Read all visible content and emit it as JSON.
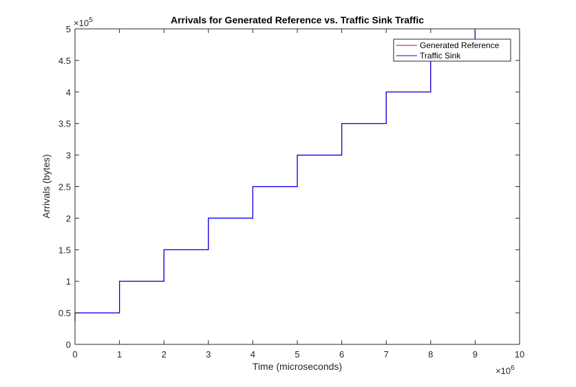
{
  "chart_data": {
    "type": "line",
    "title": "Arrivals for Generated Reference vs. Traffic Sink Traffic",
    "xlabel": "Time (microseconds)",
    "ylabel": "Arrivals (bytes)",
    "xlim": [
      0,
      10
    ],
    "ylim": [
      0,
      5
    ],
    "x_exponent": "×10",
    "x_exponent_power": "6",
    "y_exponent": "×10",
    "y_exponent_power": "5",
    "x_ticks": [
      "0",
      "1",
      "2",
      "3",
      "4",
      "5",
      "6",
      "7",
      "8",
      "9",
      "10"
    ],
    "y_ticks": [
      "0",
      "0.5",
      "1",
      "1.5",
      "2",
      "2.5",
      "3",
      "3.5",
      "4",
      "4.5",
      "5"
    ],
    "grid": false,
    "legend_position": "top-right",
    "series": [
      {
        "name": "Generated Reference",
        "color": "#cc0000",
        "points": [
          [
            0,
            0.37
          ],
          [
            0,
            0.5
          ],
          [
            1,
            0.5
          ],
          [
            1,
            0.6
          ],
          [
            1,
            1.0
          ],
          [
            2,
            1.0
          ],
          [
            2,
            1.23
          ],
          [
            2,
            1.5
          ],
          [
            3,
            1.5
          ],
          [
            3,
            2.0
          ],
          [
            4,
            2.0
          ],
          [
            4,
            2.5
          ],
          [
            5,
            2.5
          ],
          [
            5,
            3.0
          ],
          [
            6,
            3.0
          ],
          [
            6,
            3.33
          ],
          [
            6,
            3.5
          ],
          [
            7,
            3.5
          ],
          [
            7,
            4.0
          ],
          [
            8,
            4.0
          ],
          [
            8,
            4.5
          ],
          [
            9,
            4.5
          ],
          [
            9,
            5.0
          ]
        ]
      },
      {
        "name": "Traffic Sink",
        "color": "#0000ff",
        "points": [
          [
            0,
            0.37
          ],
          [
            0,
            0.5
          ],
          [
            1,
            0.5
          ],
          [
            1,
            1.0
          ],
          [
            2,
            1.0
          ],
          [
            2,
            1.5
          ],
          [
            3,
            1.5
          ],
          [
            3,
            2.0
          ],
          [
            4,
            2.0
          ],
          [
            4,
            2.5
          ],
          [
            5,
            2.5
          ],
          [
            5,
            3.0
          ],
          [
            6,
            3.0
          ],
          [
            6,
            3.5
          ],
          [
            7,
            3.5
          ],
          [
            7,
            4.0
          ],
          [
            8,
            4.0
          ],
          [
            8,
            4.5
          ],
          [
            9,
            4.5
          ],
          [
            9,
            5.0
          ]
        ]
      }
    ]
  }
}
